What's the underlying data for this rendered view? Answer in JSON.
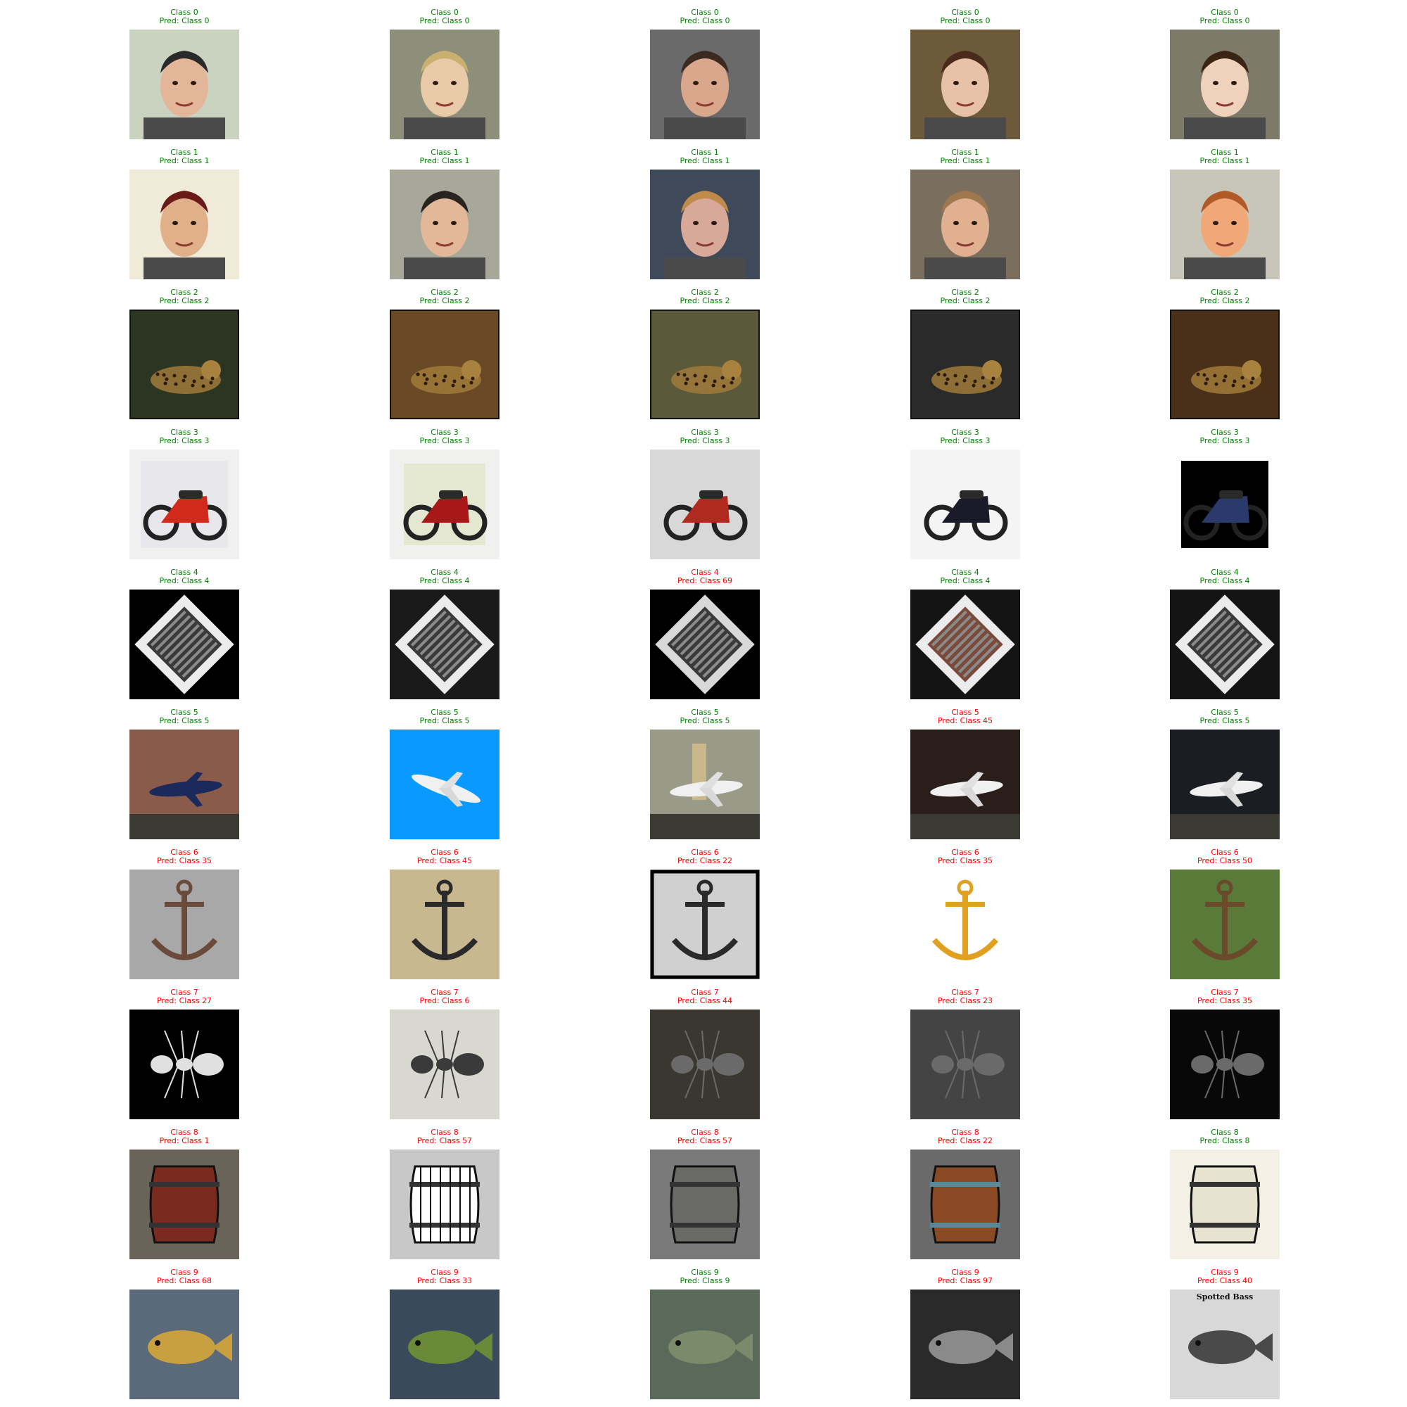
{
  "colors": {
    "correct": "#008000",
    "incorrect": "#ff0000"
  },
  "rows": [
    {
      "cells": [
        {
          "true_label": "Class 0",
          "pred_label": "Pred: Class 0",
          "correct": true,
          "scene": "face"
        },
        {
          "true_label": "Class 0",
          "pred_label": "Pred: Class 0",
          "correct": true,
          "scene": "face"
        },
        {
          "true_label": "Class 0",
          "pred_label": "Pred: Class 0",
          "correct": true,
          "scene": "face"
        },
        {
          "true_label": "Class 0",
          "pred_label": "Pred: Class 0",
          "correct": true,
          "scene": "face"
        },
        {
          "true_label": "Class 0",
          "pred_label": "Pred: Class 0",
          "correct": true,
          "scene": "face"
        }
      ]
    },
    {
      "cells": [
        {
          "true_label": "Class 1",
          "pred_label": "Pred: Class 1",
          "correct": true,
          "scene": "face"
        },
        {
          "true_label": "Class 1",
          "pred_label": "Pred: Class 1",
          "correct": true,
          "scene": "face"
        },
        {
          "true_label": "Class 1",
          "pred_label": "Pred: Class 1",
          "correct": true,
          "scene": "face"
        },
        {
          "true_label": "Class 1",
          "pred_label": "Pred: Class 1",
          "correct": true,
          "scene": "face"
        },
        {
          "true_label": "Class 1",
          "pred_label": "Pred: Class 1",
          "correct": true,
          "scene": "face"
        }
      ]
    },
    {
      "cells": [
        {
          "true_label": "Class 2",
          "pred_label": "Pred: Class 2",
          "correct": true,
          "scene": "leopard"
        },
        {
          "true_label": "Class 2",
          "pred_label": "Pred: Class 2",
          "correct": true,
          "scene": "leopard"
        },
        {
          "true_label": "Class 2",
          "pred_label": "Pred: Class 2",
          "correct": true,
          "scene": "leopard"
        },
        {
          "true_label": "Class 2",
          "pred_label": "Pred: Class 2",
          "correct": true,
          "scene": "leopard"
        },
        {
          "true_label": "Class 2",
          "pred_label": "Pred: Class 2",
          "correct": true,
          "scene": "leopard"
        }
      ]
    },
    {
      "cells": [
        {
          "true_label": "Class 3",
          "pred_label": "Pred: Class 3",
          "correct": true,
          "scene": "motorbike"
        },
        {
          "true_label": "Class 3",
          "pred_label": "Pred: Class 3",
          "correct": true,
          "scene": "motorbike"
        },
        {
          "true_label": "Class 3",
          "pred_label": "Pred: Class 3",
          "correct": true,
          "scene": "motorbike"
        },
        {
          "true_label": "Class 3",
          "pred_label": "Pred: Class 3",
          "correct": true,
          "scene": "motorbike"
        },
        {
          "true_label": "Class 3",
          "pred_label": "Pred: Class 3",
          "correct": true,
          "scene": "motorbike"
        }
      ]
    },
    {
      "cells": [
        {
          "true_label": "Class 4",
          "pred_label": "Pred: Class 4",
          "correct": true,
          "scene": "accordion"
        },
        {
          "true_label": "Class 4",
          "pred_label": "Pred: Class 4",
          "correct": true,
          "scene": "accordion"
        },
        {
          "true_label": "Class 4",
          "pred_label": "Pred: Class 69",
          "correct": false,
          "scene": "accordion"
        },
        {
          "true_label": "Class 4",
          "pred_label": "Pred: Class 4",
          "correct": true,
          "scene": "accordion"
        },
        {
          "true_label": "Class 4",
          "pred_label": "Pred: Class 4",
          "correct": true,
          "scene": "accordion"
        }
      ]
    },
    {
      "cells": [
        {
          "true_label": "Class 5",
          "pred_label": "Pred: Class 5",
          "correct": true,
          "scene": "airplane"
        },
        {
          "true_label": "Class 5",
          "pred_label": "Pred: Class 5",
          "correct": true,
          "scene": "airplane"
        },
        {
          "true_label": "Class 5",
          "pred_label": "Pred: Class 5",
          "correct": true,
          "scene": "airplane"
        },
        {
          "true_label": "Class 5",
          "pred_label": "Pred: Class 45",
          "correct": false,
          "scene": "airplane"
        },
        {
          "true_label": "Class 5",
          "pred_label": "Pred: Class 5",
          "correct": true,
          "scene": "airplane"
        }
      ]
    },
    {
      "cells": [
        {
          "true_label": "Class 6",
          "pred_label": "Pred: Class 35",
          "correct": false,
          "scene": "anchor"
        },
        {
          "true_label": "Class 6",
          "pred_label": "Pred: Class 45",
          "correct": false,
          "scene": "anchor"
        },
        {
          "true_label": "Class 6",
          "pred_label": "Pred: Class 22",
          "correct": false,
          "scene": "anchor"
        },
        {
          "true_label": "Class 6",
          "pred_label": "Pred: Class 35",
          "correct": false,
          "scene": "anchor"
        },
        {
          "true_label": "Class 6",
          "pred_label": "Pred: Class 50",
          "correct": false,
          "scene": "anchor"
        }
      ]
    },
    {
      "cells": [
        {
          "true_label": "Class 7",
          "pred_label": "Pred: Class 27",
          "correct": false,
          "scene": "ant"
        },
        {
          "true_label": "Class 7",
          "pred_label": "Pred: Class 6",
          "correct": false,
          "scene": "ant"
        },
        {
          "true_label": "Class 7",
          "pred_label": "Pred: Class 44",
          "correct": false,
          "scene": "ant"
        },
        {
          "true_label": "Class 7",
          "pred_label": "Pred: Class 23",
          "correct": false,
          "scene": "ant"
        },
        {
          "true_label": "Class 7",
          "pred_label": "Pred: Class 35",
          "correct": false,
          "scene": "ant"
        }
      ]
    },
    {
      "cells": [
        {
          "true_label": "Class 8",
          "pred_label": "Pred: Class 1",
          "correct": false,
          "scene": "barrel"
        },
        {
          "true_label": "Class 8",
          "pred_label": "Pred: Class 57",
          "correct": false,
          "scene": "barrel"
        },
        {
          "true_label": "Class 8",
          "pred_label": "Pred: Class 57",
          "correct": false,
          "scene": "barrel"
        },
        {
          "true_label": "Class 8",
          "pred_label": "Pred: Class 22",
          "correct": false,
          "scene": "barrel"
        },
        {
          "true_label": "Class 8",
          "pred_label": "Pred: Class 8",
          "correct": true,
          "scene": "barrel"
        }
      ]
    },
    {
      "cells": [
        {
          "true_label": "Class 9",
          "pred_label": "Pred: Class 68",
          "correct": false,
          "scene": "fish"
        },
        {
          "true_label": "Class 9",
          "pred_label": "Pred: Class 33",
          "correct": false,
          "scene": "fish"
        },
        {
          "true_label": "Class 9",
          "pred_label": "Pred: Class 9",
          "correct": true,
          "scene": "fish"
        },
        {
          "true_label": "Class 9",
          "pred_label": "Pred: Class 97",
          "correct": false,
          "scene": "fish"
        },
        {
          "true_label": "Class 9",
          "pred_label": "Pred: Class 40",
          "correct": false,
          "scene": "fish"
        }
      ]
    }
  ],
  "image_text": {
    "fish_poster_title": "Spotted Bass"
  }
}
